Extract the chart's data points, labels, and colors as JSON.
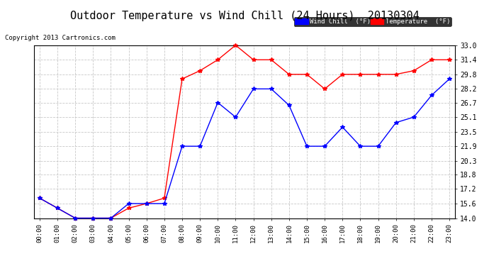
{
  "title": "Outdoor Temperature vs Wind Chill (24 Hours)  20130304",
  "copyright": "Copyright 2013 Cartronics.com",
  "x_labels": [
    "00:00",
    "01:00",
    "02:00",
    "03:00",
    "04:00",
    "05:00",
    "06:00",
    "07:00",
    "08:00",
    "09:00",
    "10:00",
    "11:00",
    "12:00",
    "13:00",
    "14:00",
    "15:00",
    "16:00",
    "17:00",
    "18:00",
    "19:00",
    "20:00",
    "21:00",
    "22:00",
    "23:00"
  ],
  "y_ticks": [
    14.0,
    15.6,
    17.2,
    18.8,
    20.3,
    21.9,
    23.5,
    25.1,
    26.7,
    28.2,
    29.8,
    31.4,
    33.0
  ],
  "y_min": 14.0,
  "y_max": 33.0,
  "temperature": [
    16.2,
    15.1,
    14.0,
    14.0,
    14.0,
    15.1,
    15.6,
    16.2,
    29.3,
    30.2,
    31.4,
    33.0,
    31.4,
    31.4,
    29.8,
    29.8,
    28.2,
    29.8,
    29.8,
    29.8,
    29.8,
    30.2,
    31.4,
    31.4
  ],
  "wind_chill": [
    16.2,
    15.1,
    14.0,
    14.0,
    14.0,
    15.6,
    15.6,
    15.6,
    21.9,
    21.9,
    26.7,
    25.1,
    28.2,
    28.2,
    26.4,
    21.9,
    21.9,
    24.0,
    21.9,
    21.9,
    24.5,
    25.1,
    27.5,
    29.3
  ],
  "temp_color": "#ff0000",
  "wind_chill_color": "#0000ff",
  "bg_color": "#ffffff",
  "grid_color": "#c8c8c8",
  "title_fontsize": 11,
  "legend_wind_label": "Wind Chill  (°F)",
  "legend_temp_label": "Temperature  (°F)"
}
